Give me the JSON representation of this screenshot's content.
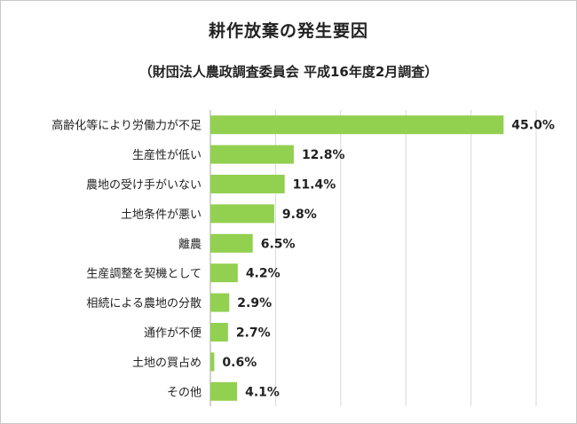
{
  "chart_data": {
    "type": "bar",
    "orientation": "horizontal",
    "title": "耕作放棄の発生要因",
    "subtitle": "（財団法人農政調査委員会 平成16年度2月調査）",
    "categories": [
      "高齢化等により労働力が不足",
      "生産性が低い",
      "農地の受け手がいない",
      "土地条件が悪い",
      "離農",
      "生産調整を契機として",
      "相続による農地の分散",
      "通作が不便",
      "土地の買占め",
      "その他"
    ],
    "values": [
      45.0,
      12.8,
      11.4,
      9.8,
      6.5,
      4.2,
      2.9,
      2.7,
      0.6,
      4.1
    ],
    "value_labels": [
      "45.0%",
      "12.8%",
      "11.4%",
      "9.8%",
      "6.5%",
      "4.2%",
      "2.9%",
      "2.7%",
      "0.6%",
      "4.1%"
    ],
    "xlim": [
      0,
      50
    ],
    "grid": true,
    "bar_color": "#92d050",
    "grid_color": "#d9d9d9",
    "axis_color": "#a6a6a6"
  }
}
